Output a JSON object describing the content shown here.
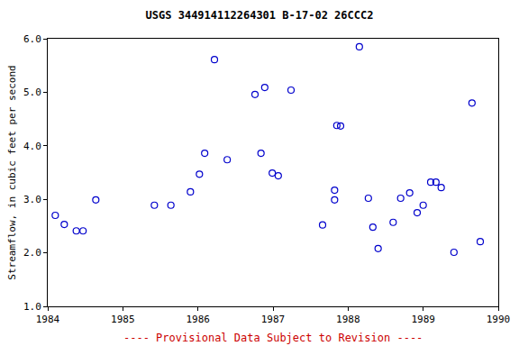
{
  "chart_data": {
    "type": "scatter",
    "title": "USGS 344914112264301 B-17-02 26CCC2",
    "y_label": "Streamflow, in cubic feet per second",
    "annotations": [
      "---- Provisional Data Subject to Revision ----"
    ],
    "x": [
      1984.1,
      1984.22,
      1984.38,
      1984.47,
      1984.64,
      1985.42,
      1985.64,
      1985.9,
      1986.02,
      1986.09,
      1986.22,
      1986.39,
      1986.76,
      1986.84,
      1986.89,
      1986.99,
      1987.07,
      1987.24,
      1987.66,
      1987.82,
      1987.82,
      1987.85,
      1987.9,
      1988.15,
      1988.27,
      1988.33,
      1988.4,
      1988.6,
      1988.7,
      1988.82,
      1988.92,
      1989.0,
      1989.1,
      1989.17,
      1989.24,
      1989.41,
      1989.65,
      1989.76
    ],
    "values": [
      2.7,
      2.53,
      2.41,
      2.41,
      2.99,
      2.89,
      2.89,
      3.14,
      3.47,
      3.86,
      5.61,
      3.74,
      4.96,
      3.86,
      5.09,
      3.49,
      3.44,
      5.04,
      2.52,
      3.17,
      2.99,
      4.38,
      4.37,
      5.85,
      3.02,
      2.48,
      2.08,
      2.57,
      3.02,
      3.12,
      2.75,
      2.89,
      3.32,
      3.32,
      3.22,
      2.01,
      4.8,
      2.21
    ],
    "color": "#0000cc",
    "marker": "circle-open",
    "xlim": [
      1984,
      1990
    ],
    "xticks": [
      1984,
      1985,
      1986,
      1987,
      1988,
      1989,
      1990
    ],
    "ylim": [
      1.0,
      6.0
    ],
    "yticks": [
      {
        "value": 1,
        "label": "1.0"
      },
      {
        "value": 2,
        "label": "2.0"
      },
      {
        "value": 3,
        "label": "3.0"
      },
      {
        "value": 4,
        "label": "4.0"
      },
      {
        "value": 5,
        "label": "5.0"
      },
      {
        "value": 6,
        "label": "6.0"
      }
    ],
    "grid": false
  }
}
